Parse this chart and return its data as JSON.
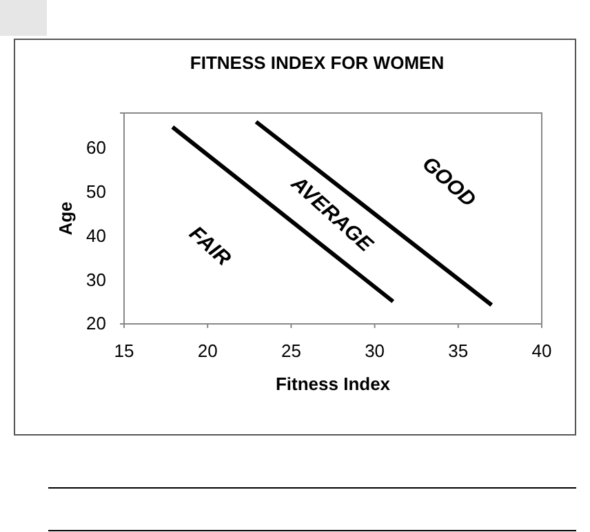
{
  "chart_data": {
    "type": "line",
    "title": "FITNESS INDEX FOR WOMEN",
    "xlabel": "Fitness Index",
    "ylabel": "Age",
    "xlim": [
      15,
      40
    ],
    "xticks": [
      15,
      20,
      25,
      30,
      35,
      40
    ],
    "ylim": [
      20,
      68
    ],
    "yticks": [
      20,
      30,
      40,
      50,
      60
    ],
    "series": [
      {
        "color": "#000000",
        "x": [
          17.9,
          31.1
        ],
        "values": [
          64.8,
          25.1
        ]
      },
      {
        "color": "#000000",
        "x": [
          22.9,
          37.0
        ],
        "values": [
          66,
          24.3
        ]
      }
    ],
    "annotations": [
      "FAIR",
      "AVERAGE",
      "GOOD"
    ],
    "grid": false,
    "marker": "none",
    "line_style": "solid"
  }
}
